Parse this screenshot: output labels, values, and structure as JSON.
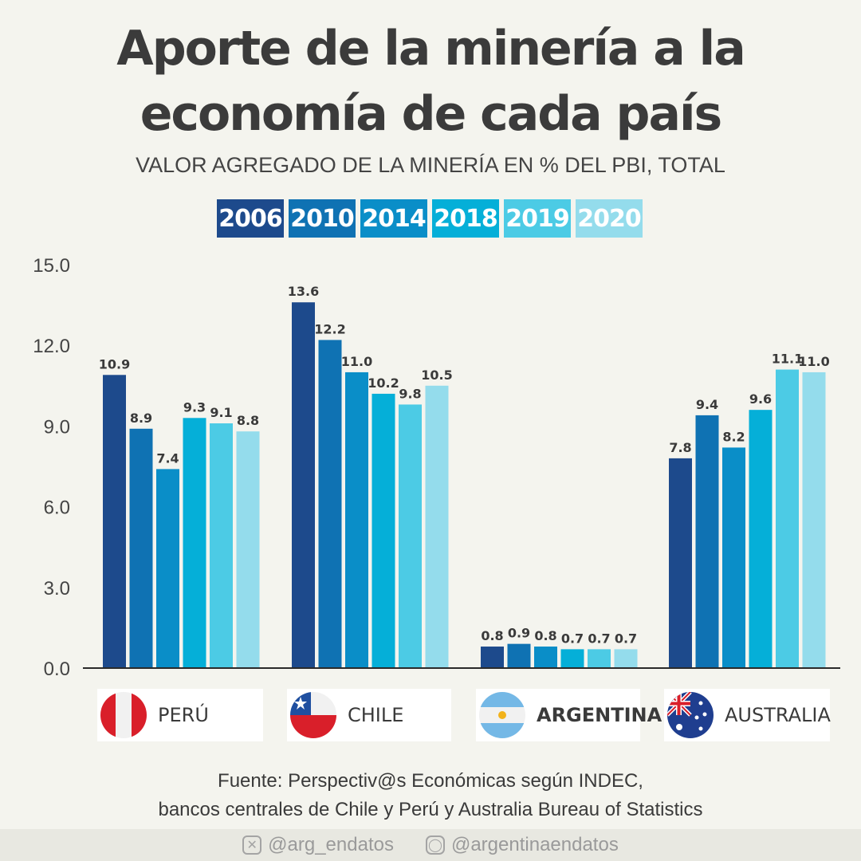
{
  "header": {
    "title_line1": "Aporte de la minería a la",
    "title_line2": "economía de cada país",
    "subtitle": "VALOR AGREGADO DE LA MINERÍA EN % DEL PBI, TOTAL"
  },
  "chart_data": {
    "type": "bar",
    "categories": [
      "PERÚ",
      "CHILE",
      "ARGENTINA",
      "AUSTRALIA"
    ],
    "series": [
      {
        "name": "2006",
        "color": "#1d4a8c",
        "values": [
          10.9,
          13.6,
          0.8,
          7.8
        ]
      },
      {
        "name": "2010",
        "color": "#0f72b3",
        "values": [
          8.9,
          12.2,
          0.9,
          9.4
        ]
      },
      {
        "name": "2014",
        "color": "#0a8ec8",
        "values": [
          7.4,
          11.0,
          0.8,
          8.2
        ]
      },
      {
        "name": "2018",
        "color": "#05afd8",
        "values": [
          9.3,
          10.2,
          0.7,
          9.6
        ]
      },
      {
        "name": "2019",
        "color": "#4ccbe5",
        "values": [
          9.1,
          9.8,
          0.7,
          11.1
        ]
      },
      {
        "name": "2020",
        "color": "#94dcec",
        "values": [
          8.8,
          10.5,
          0.7,
          11.0
        ]
      }
    ],
    "y_ticks": [
      "0.0",
      "3.0",
      "6.0",
      "9.0",
      "12.0",
      "15.0"
    ],
    "ylim": [
      0,
      15
    ],
    "value_labels": [
      [
        "10.9",
        "13.6",
        "0.8",
        "7.8"
      ],
      [
        "8.9",
        "12.2",
        "0.9",
        "9.4"
      ],
      [
        "7.4",
        "11.0",
        "0.8",
        "8.2"
      ],
      [
        "9.3",
        "10.2",
        "0.7",
        "9.6"
      ],
      [
        "9.1",
        "9.8",
        "0.7",
        "11.1"
      ],
      [
        "8.8",
        "10.5",
        "0.7",
        "11.0"
      ]
    ],
    "grid": false,
    "legend": "top-center"
  },
  "countries": [
    {
      "name": "PERÚ",
      "flag": "peru-flag-icon"
    },
    {
      "name": "CHILE",
      "flag": "chile-flag-icon"
    },
    {
      "name": "ARGENTINA",
      "flag": "argentina-flag-icon"
    },
    {
      "name": "AUSTRALIA",
      "flag": "australia-flag-icon"
    }
  ],
  "source": {
    "line1": "Fuente: Perspectiv@s Económicas según INDEC,",
    "line2": "bancos centrales de Chile y Perú y Australia Bureau of Statistics"
  },
  "footer": {
    "twitter_handle": "@arg_endatos",
    "instagram_handle": "@argentinaendatos"
  }
}
